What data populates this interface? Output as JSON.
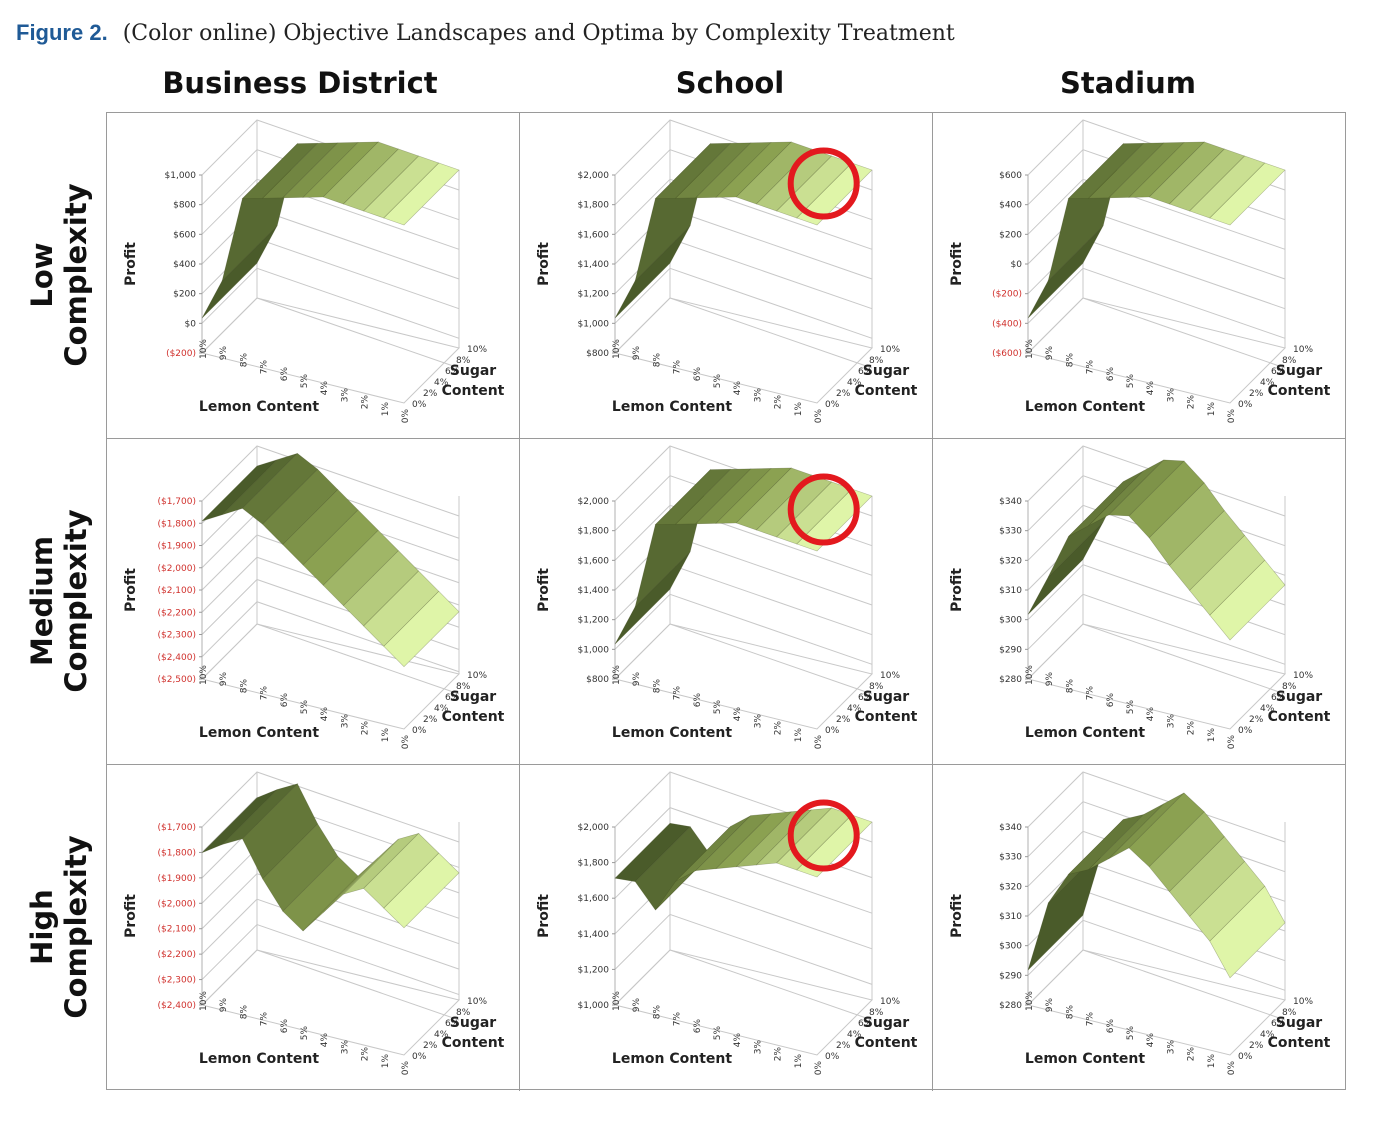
{
  "figure": {
    "label": "Figure 2.",
    "caption": "(Color online) Objective Landscapes and Optima by Complexity Treatment"
  },
  "columns": [
    "Business District",
    "School",
    "Stadium"
  ],
  "rows": [
    {
      "line1": "Low",
      "line2": "Complexity"
    },
    {
      "line1": "Medium",
      "line2": "Complexity"
    },
    {
      "line1": "High",
      "line2": "Complexity"
    }
  ],
  "colors": {
    "negative_tick": "#d0312d",
    "optimum_circle": "#e3191e",
    "surface_dark": "#4a5b2a",
    "surface_mid": "#8aa050",
    "surface_light": "#dff5a8"
  },
  "chart_data": [
    {
      "type": "surface3d",
      "location": "Business District",
      "complexity": "Low",
      "xlabel": "Lemon Content",
      "ylabel": "Profit",
      "zlabel": "Sugar Content",
      "x_ticks": [
        "10%",
        "9%",
        "8%",
        "7%",
        "6%",
        "5%",
        "4%",
        "3%",
        "2%",
        "1%",
        "0%"
      ],
      "z_ticks": [
        "0%",
        "2%",
        "4%",
        "6%",
        "8%",
        "10%"
      ],
      "y_ticks": [
        "$1,000",
        "$800",
        "$600",
        "$400",
        "$200",
        "$0",
        "($200)"
      ],
      "negative_ticks": [
        "($200)"
      ],
      "ylim": [
        -200,
        1000
      ],
      "surface_profile": [
        -100,
        200,
        800,
        850,
        900,
        950,
        1000,
        1020,
        1050,
        1070,
        1000
      ],
      "optimum_marked": false
    },
    {
      "type": "surface3d",
      "location": "School",
      "complexity": "Low",
      "xlabel": "Lemon Content",
      "ylabel": "Profit",
      "zlabel": "Sugar Content",
      "x_ticks": [
        "10%",
        "9%",
        "8%",
        "7%",
        "6%",
        "5%",
        "4%",
        "3%",
        "2%",
        "1%",
        "0%"
      ],
      "z_ticks": [
        "0%",
        "2%",
        "4%",
        "6%",
        "8%",
        "10%"
      ],
      "y_ticks": [
        "$2,000",
        "$1,800",
        "$1,600",
        "$1,400",
        "$1,200",
        "$1,000",
        "$800"
      ],
      "negative_ticks": [],
      "ylim": [
        800,
        2000
      ],
      "surface_profile": [
        900,
        1200,
        1800,
        1850,
        1900,
        1950,
        2000,
        2020,
        2050,
        2070,
        2000
      ],
      "optimum_marked": true
    },
    {
      "type": "surface3d",
      "location": "Stadium",
      "complexity": "Low",
      "xlabel": "Lemon Content",
      "ylabel": "Profit",
      "zlabel": "Sugar Content",
      "x_ticks": [
        "10%",
        "9%",
        "8%",
        "7%",
        "6%",
        "5%",
        "4%",
        "3%",
        "2%",
        "1%",
        "0%"
      ],
      "z_ticks": [
        "0%",
        "2%",
        "4%",
        "6%",
        "8%",
        "10%"
      ],
      "y_ticks": [
        "$600",
        "$400",
        "$200",
        "$0",
        "($200)",
        "($400)",
        "($600)"
      ],
      "negative_ticks": [
        "($200)",
        "($400)",
        "($600)"
      ],
      "ylim": [
        -600,
        600
      ],
      "surface_profile": [
        -500,
        -200,
        400,
        450,
        500,
        550,
        600,
        620,
        650,
        670,
        600
      ],
      "optimum_marked": false
    },
    {
      "type": "surface3d",
      "location": "Business District",
      "complexity": "Medium",
      "xlabel": "Lemon Content",
      "ylabel": "Profit",
      "zlabel": "Sugar Content",
      "x_ticks": [
        "10%",
        "9%",
        "8%",
        "7%",
        "6%",
        "5%",
        "4%",
        "3%",
        "2%",
        "1%",
        "0%"
      ],
      "z_ticks": [
        "0%",
        "2%",
        "4%",
        "6%",
        "8%",
        "10%"
      ],
      "y_ticks": [
        "($1,700)",
        "($1,800)",
        "($1,900)",
        "($2,000)",
        "($2,100)",
        "($2,200)",
        "($2,300)",
        "($2,400)",
        "($2,500)"
      ],
      "negative_ticks": [
        "($1,700)",
        "($1,800)",
        "($1,900)",
        "($2,000)",
        "($2,100)",
        "($2,200)",
        "($2,300)",
        "($2,400)",
        "($2,500)"
      ],
      "ylim": [
        -2500,
        -1700
      ],
      "surface_profile": [
        -1880,
        -1820,
        -1760,
        -1800,
        -1860,
        -1920,
        -1980,
        -2040,
        -2100,
        -2160,
        -2220
      ],
      "optimum_marked": false
    },
    {
      "type": "surface3d",
      "location": "School",
      "complexity": "Medium",
      "xlabel": "Lemon Content",
      "ylabel": "Profit",
      "zlabel": "Sugar Content",
      "x_ticks": [
        "10%",
        "9%",
        "8%",
        "7%",
        "6%",
        "5%",
        "4%",
        "3%",
        "2%",
        "1%",
        "0%"
      ],
      "z_ticks": [
        "0%",
        "2%",
        "4%",
        "6%",
        "8%",
        "10%"
      ],
      "y_ticks": [
        "$2,000",
        "$1,800",
        "$1,600",
        "$1,400",
        "$1,200",
        "$1,000",
        "$800"
      ],
      "negative_ticks": [],
      "ylim": [
        800,
        2000
      ],
      "surface_profile": [
        900,
        1200,
        1800,
        1850,
        1900,
        1950,
        2000,
        2020,
        2050,
        2070,
        2000
      ],
      "optimum_marked": true
    },
    {
      "type": "surface3d",
      "location": "Stadium",
      "complexity": "Medium",
      "xlabel": "Lemon Content",
      "ylabel": "Profit",
      "zlabel": "Sugar Content",
      "x_ticks": [
        "10%",
        "9%",
        "8%",
        "7%",
        "6%",
        "5%",
        "4%",
        "3%",
        "2%",
        "1%",
        "0%"
      ],
      "z_ticks": [
        "0%",
        "2%",
        "4%",
        "6%",
        "8%",
        "10%"
      ],
      "y_ticks": [
        "$340",
        "$330",
        "$320",
        "$310",
        "$300",
        "$290",
        "$280"
      ],
      "negative_ticks": [],
      "ylim": [
        280,
        340
      ],
      "surface_profile": [
        295,
        310,
        326,
        332,
        338,
        340,
        335,
        328,
        322,
        316,
        310
      ],
      "optimum_marked": false
    },
    {
      "type": "surface3d",
      "location": "Business District",
      "complexity": "High",
      "xlabel": "Lemon Content",
      "ylabel": "Profit",
      "zlabel": "Sugar Content",
      "x_ticks": [
        "10%",
        "9%",
        "8%",
        "7%",
        "6%",
        "5%",
        "4%",
        "3%",
        "2%",
        "1%",
        "0%"
      ],
      "z_ticks": [
        "0%",
        "2%",
        "4%",
        "6%",
        "8%",
        "10%"
      ],
      "y_ticks": [
        "($1,700)",
        "($1,800)",
        "($1,900)",
        "($2,000)",
        "($2,100)",
        "($2,200)",
        "($2,300)",
        "($2,400)"
      ],
      "negative_ticks": [
        "($1,700)",
        "($1,800)",
        "($1,900)",
        "($2,000)",
        "($2,100)",
        "($2,200)",
        "($2,300)",
        "($2,400)"
      ],
      "ylim": [
        -2400,
        -1700
      ],
      "surface_profile": [
        -1880,
        -1820,
        -1770,
        -1900,
        -2000,
        -2050,
        -1950,
        -1850,
        -1800,
        -1850,
        -1900
      ],
      "optimum_marked": false
    },
    {
      "type": "surface3d",
      "location": "School",
      "complexity": "High",
      "xlabel": "Lemon Content",
      "ylabel": "Profit",
      "zlabel": "Sugar Content",
      "x_ticks": [
        "10%",
        "9%",
        "8%",
        "7%",
        "6%",
        "5%",
        "4%",
        "3%",
        "2%",
        "1%",
        "0%"
      ],
      "z_ticks": [
        "0%",
        "2%",
        "4%",
        "6%",
        "8%",
        "10%"
      ],
      "y_ticks": [
        "$2,000",
        "$1,800",
        "$1,600",
        "$1,400",
        "$1,200",
        "$1,000"
      ],
      "negative_ticks": [],
      "ylim": [
        1000,
        2000
      ],
      "surface_profile": [
        1600,
        1620,
        1500,
        1700,
        1800,
        1850,
        1900,
        1950,
        2000,
        2050,
        2000
      ],
      "optimum_marked": true
    },
    {
      "type": "surface3d",
      "location": "Stadium",
      "complexity": "High",
      "xlabel": "Lemon Content",
      "ylabel": "Profit",
      "zlabel": "Sugar Content",
      "x_ticks": [
        "10%",
        "9%",
        "8%",
        "7%",
        "6%",
        "5%",
        "4%",
        "3%",
        "2%",
        "1%",
        "0%"
      ],
      "z_ticks": [
        "0%",
        "2%",
        "4%",
        "6%",
        "8%",
        "10%"
      ],
      "y_ticks": [
        "$340",
        "$330",
        "$320",
        "$310",
        "$300",
        "$290",
        "$280"
      ],
      "negative_ticks": [],
      "ylim": [
        280,
        340
      ],
      "surface_profile": [
        285,
        310,
        322,
        326,
        332,
        338,
        334,
        328,
        322,
        316,
        306
      ],
      "optimum_marked": false
    }
  ]
}
